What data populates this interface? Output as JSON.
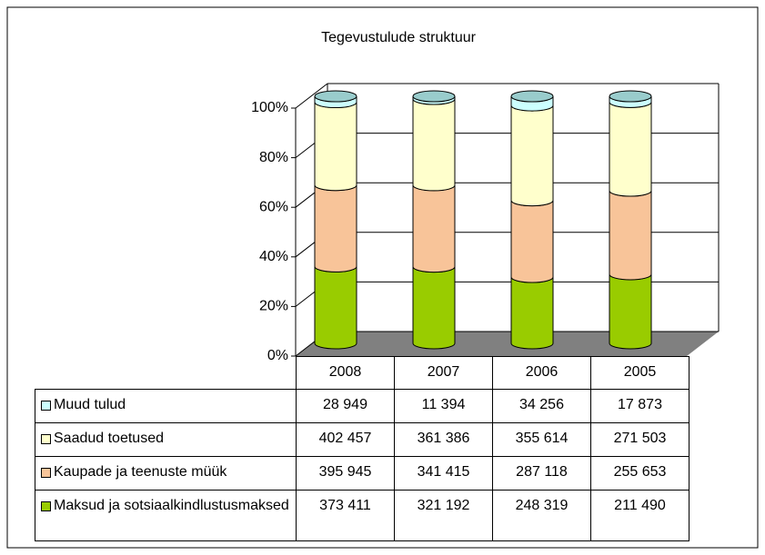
{
  "chart_data": {
    "type": "cylinder_stacked_percent",
    "title": "Tegevustulude struktuur",
    "categories": [
      "2008",
      "2007",
      "2006",
      "2005"
    ],
    "series": [
      {
        "name": "Muud tulud",
        "color": "#ccffff",
        "values": [
          28949,
          11394,
          34256,
          17873
        ],
        "value_labels": [
          "28 949",
          "11 394",
          "34 256",
          "17 873"
        ]
      },
      {
        "name": "Saadud toetused",
        "color": "#ffffcc",
        "values": [
          402457,
          361386,
          355614,
          271503
        ],
        "value_labels": [
          "402 457",
          "361 386",
          "355 614",
          "271 503"
        ]
      },
      {
        "name": "Kaupade ja teenuste müük",
        "color": "#f8c499",
        "values": [
          395945,
          341415,
          287118,
          255653
        ],
        "value_labels": [
          "395 945",
          "341 415",
          "287 118",
          "255 653"
        ]
      },
      {
        "name": "Maksud ja sotsiaalkindlustusmaksed",
        "color": "#99cc00",
        "values": [
          373411,
          321192,
          248319,
          211490
        ],
        "value_labels": [
          "373 411",
          "321 192",
          "248 319",
          "211 490"
        ]
      }
    ],
    "ylim": [
      0,
      100
    ],
    "yticks": [
      {
        "value": 0,
        "label": "0%"
      },
      {
        "value": 20,
        "label": "20%"
      },
      {
        "value": 40,
        "label": "40%"
      },
      {
        "value": 60,
        "label": "60%"
      },
      {
        "value": 80,
        "label": "80%"
      },
      {
        "value": 100,
        "label": "100%"
      }
    ],
    "grid": true,
    "data_table": true
  }
}
